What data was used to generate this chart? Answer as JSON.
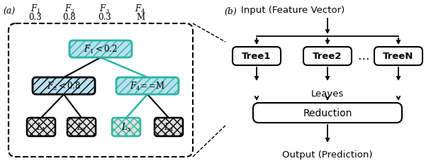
{
  "fig_width": 6.08,
  "fig_height": 2.28,
  "dpi": 100,
  "bg_color": "#ffffff",
  "teal_color": "#2ab5a0",
  "blue_hatch_fill": "#b8dff0",
  "gray_fill": "#e0e0e0",
  "black": "#000000",
  "panel_a_label": "(a)",
  "panel_b_label": "(b)",
  "feature_labels": [
    "$F_1$",
    "$F_2$",
    "$F_3$",
    "$F_4$"
  ],
  "feature_values": [
    "0.3",
    "0.8",
    "0.3",
    "M"
  ],
  "title_b": "Input (Feature Vector)",
  "tree_labels": [
    "Tree1",
    "Tree2",
    "TreeN"
  ],
  "leaves_label": "Leaves",
  "reduction_label": "Reduction",
  "output_label": "Output (Prediction)"
}
